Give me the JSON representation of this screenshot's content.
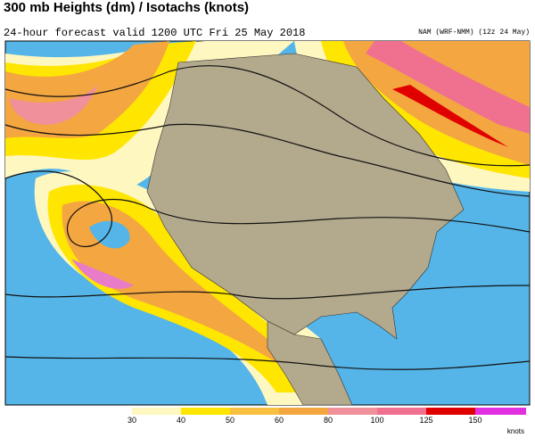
{
  "header": {
    "title": "300 mb Heights (dm) / Isotachs (knots)",
    "subtitle": "24-hour forecast valid 1200 UTC Fri 25 May 2018",
    "model": "NAM (WRF-NMM) (12z 24 May)"
  },
  "legend": {
    "labels": [
      30,
      40,
      50,
      60,
      80,
      100,
      125,
      150
    ],
    "unit": "knots"
  }
}
